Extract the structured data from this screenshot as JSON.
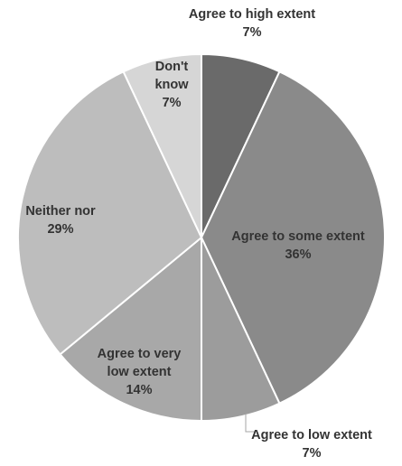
{
  "chart_data": {
    "type": "pie",
    "title": "",
    "slices": [
      {
        "label_lines": [
          "Agree to high extent"
        ],
        "value": 7,
        "value_label": "7%",
        "color": "#6a6a6a"
      },
      {
        "label_lines": [
          "Agree to some extent"
        ],
        "value": 36,
        "value_label": "36%",
        "color": "#8a8a8a"
      },
      {
        "label_lines": [
          "Agree to low extent"
        ],
        "value": 7,
        "value_label": "7%",
        "color": "#9c9c9c"
      },
      {
        "label_lines": [
          "Agree to very",
          "low extent"
        ],
        "value": 14,
        "value_label": "14%",
        "color": "#a8a8a8"
      },
      {
        "label_lines": [
          "Neither nor"
        ],
        "value": 29,
        "value_label": "29%",
        "color": "#bdbdbd"
      },
      {
        "label_lines": [
          "Don't",
          "know"
        ],
        "value": 7,
        "value_label": "7%",
        "color": "#d6d6d6"
      }
    ],
    "start_angle": "12 o'clock",
    "direction": "clockwise",
    "legend": "none"
  }
}
